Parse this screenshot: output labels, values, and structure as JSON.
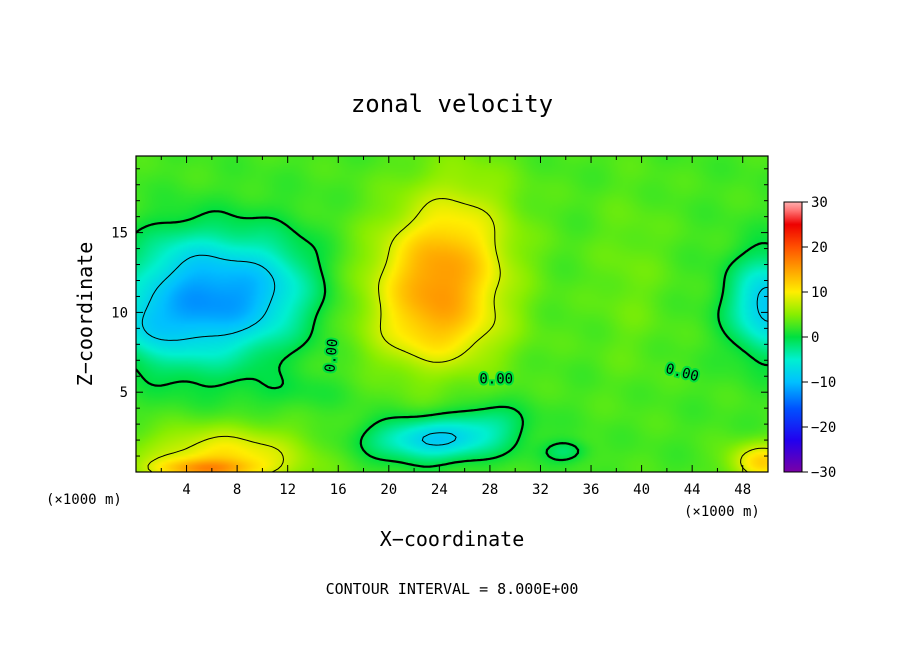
{
  "chart_data": {
    "type": "heatmap",
    "title": "zonal velocity",
    "xlabel": "X−coordinate",
    "ylabel": "Z−coordinate",
    "x_unit_label": "(×1000 m)",
    "y_unit_label": "(×1000 m)",
    "footer": "CONTOUR INTERVAL = 8.000E+00",
    "xlim": [
      0,
      50
    ],
    "ylim": [
      0,
      19.8
    ],
    "x_ticks": [
      4,
      8,
      12,
      16,
      20,
      24,
      28,
      32,
      36,
      40,
      44,
      48
    ],
    "x_tick_labels": [
      "4",
      "8",
      "12",
      "16",
      "20",
      "24",
      "28",
      "32",
      "36",
      "40",
      "44",
      "48"
    ],
    "y_ticks": [
      5,
      10,
      15
    ],
    "y_tick_labels": [
      "5",
      "10",
      "15"
    ],
    "colorbar": {
      "min": -30,
      "max": 30,
      "ticks": [
        30,
        20,
        10,
        0,
        -10,
        -20,
        -30
      ],
      "tick_labels": [
        "30",
        "20",
        "10",
        "0",
        "−10",
        "−20",
        "−30"
      ],
      "colors": [
        {
          "v": -30,
          "c": "#7a00a6"
        },
        {
          "v": -23,
          "c": "#2200ee"
        },
        {
          "v": -16,
          "c": "#0050ff"
        },
        {
          "v": -10,
          "c": "#00c0ff"
        },
        {
          "v": -5,
          "c": "#00f0d0"
        },
        {
          "v": 0,
          "c": "#00e040"
        },
        {
          "v": 5,
          "c": "#88ee00"
        },
        {
          "v": 10,
          "c": "#ffee00"
        },
        {
          "v": 15,
          "c": "#ffa000"
        },
        {
          "v": 20,
          "c": "#ff5000"
        },
        {
          "v": 25,
          "c": "#ee0000"
        },
        {
          "v": 28,
          "c": "#ff7070"
        },
        {
          "v": 30,
          "c": "#ffb0b0"
        }
      ]
    },
    "contour_interval": 8,
    "contour_labels": [
      {
        "text": "0.00",
        "x": 15.5,
        "z": 7.3,
        "rotate": -85
      },
      {
        "text": "0.00",
        "x": 28.5,
        "z": 5.8,
        "rotate": 0
      },
      {
        "text": "0.00",
        "x": 43.2,
        "z": 6.2,
        "rotate": 15
      }
    ],
    "features": [
      {
        "type": "positive_max",
        "x": 23.8,
        "z": 10.8,
        "value": 14,
        "desc": "upper jet"
      },
      {
        "type": "negative_min",
        "x": 2.2,
        "z": 9.5,
        "value": -11
      },
      {
        "type": "negative_min",
        "x": 9.0,
        "z": 10.2,
        "value": -9
      },
      {
        "type": "negative_min",
        "x": 49.5,
        "z": 10.5,
        "value": -10
      },
      {
        "type": "negative_min",
        "x": 23.5,
        "z": 2.0,
        "value": -10
      },
      {
        "type": "positive_max",
        "x": 5.5,
        "z": 0.4,
        "value": 17
      },
      {
        "type": "positive_max",
        "x": 49.5,
        "z": 0.6,
        "value": 13
      }
    ]
  }
}
